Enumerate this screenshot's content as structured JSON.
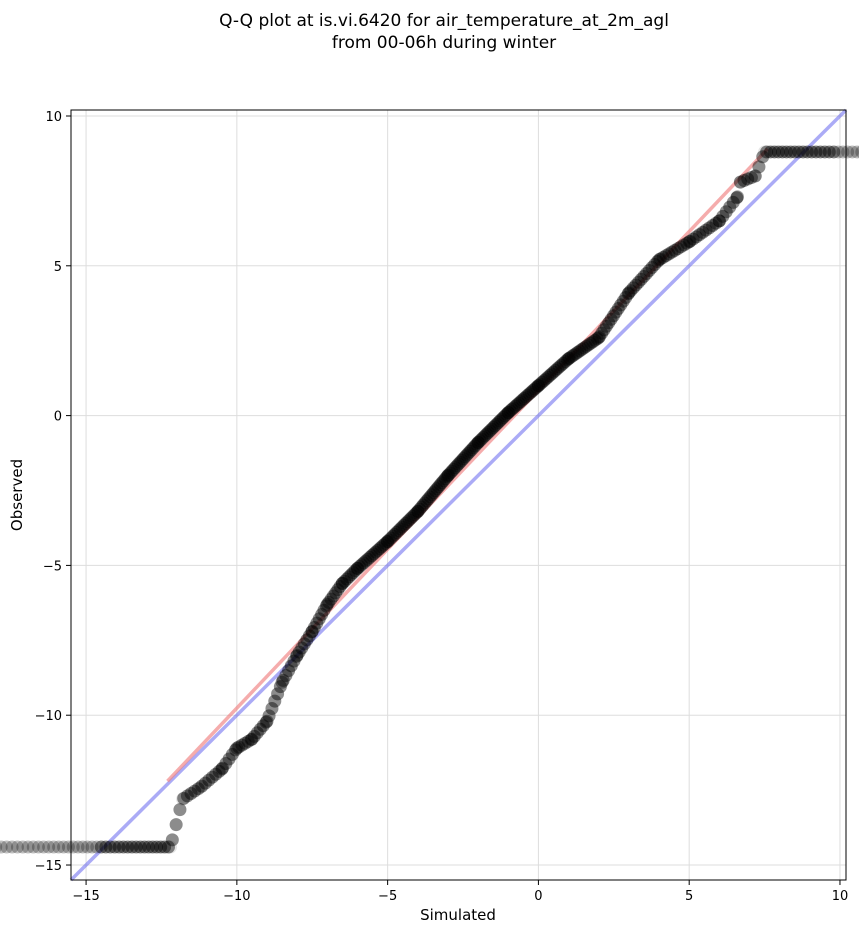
{
  "chart_data": {
    "type": "scatter",
    "title": [
      "Q-Q plot at is.vi.6420 for air_temperature_at_2m_agl",
      "from 00-06h during winter"
    ],
    "xlabel": "Simulated",
    "ylabel": "Observed",
    "xlim": [
      -15.5,
      10.2
    ],
    "ylim": [
      -15.5,
      10.2
    ],
    "xticks": [
      -15,
      -10,
      -5,
      0,
      5,
      10
    ],
    "yticks": [
      -15,
      -10,
      -5,
      0,
      5,
      10
    ],
    "xtick_labels": [
      "−15",
      "−10",
      "−5",
      "0",
      "5",
      "10"
    ],
    "ytick_labels": [
      "−15",
      "−10",
      "−5",
      "0",
      "5",
      "10"
    ],
    "grid": true,
    "colors": {
      "points": "#000000",
      "fit_line": "#f08080",
      "identity_line": "#6666ee",
      "grid": "#dddddd"
    },
    "identity_line": {
      "x": [
        -15.5,
        10.2
      ],
      "y": [
        -15.5,
        10.2
      ]
    },
    "fit_line": {
      "x": [
        -12.3,
        7.6
      ],
      "y": [
        -12.2,
        8.9
      ]
    },
    "quantile_anchors": {
      "x": [
        -12.2,
        -11.8,
        -11.2,
        -10.5,
        -10.0,
        -9.5,
        -9.0,
        -8.5,
        -8.0,
        -7.5,
        -7.0,
        -6.5,
        -6.0,
        -5.0,
        -4.0,
        -3.0,
        -2.0,
        -1.0,
        0.0,
        1.0,
        2.0,
        3.0,
        4.0,
        5.0,
        6.0,
        6.6,
        6.7,
        7.2,
        7.5
      ],
      "y": [
        -14.4,
        -12.8,
        -12.4,
        -11.8,
        -11.1,
        -10.8,
        -10.2,
        -8.9,
        -8.0,
        -7.2,
        -6.3,
        -5.6,
        -5.1,
        -4.2,
        -3.2,
        -2.0,
        -0.9,
        0.1,
        1.0,
        1.9,
        2.6,
        4.1,
        5.2,
        5.8,
        6.5,
        7.3,
        7.8,
        8.0,
        8.8
      ]
    },
    "n_points": 360,
    "notes_axis": "No legend shown"
  }
}
